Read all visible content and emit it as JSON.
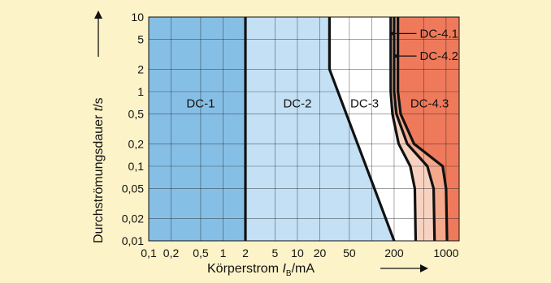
{
  "chart_data": {
    "type": "area",
    "title": "",
    "xlabel": {
      "prefix": "Körperstrom ",
      "symbol": "I",
      "subscript": "B",
      "unit": "/mA"
    },
    "ylabel": {
      "prefix": "Durchströmungsdauer ",
      "symbol": "t",
      "unit": "/s"
    },
    "x_scale": "log",
    "y_scale": "log",
    "xlim": [
      0.1,
      1500
    ],
    "ylim": [
      0.01,
      10
    ],
    "grid": true,
    "x_ticks": [
      {
        "label": "0,1",
        "value": 0.1
      },
      {
        "label": "0,2",
        "value": 0.2
      },
      {
        "label": "0,5",
        "value": 0.5
      },
      {
        "label": "1",
        "value": 1
      },
      {
        "label": "2",
        "value": 2
      },
      {
        "label": "5",
        "value": 5
      },
      {
        "label": "10",
        "value": 10
      },
      {
        "label": "20",
        "value": 20
      },
      {
        "label": "50",
        "value": 50
      },
      {
        "label": "200",
        "value": 200
      },
      {
        "label": "1000",
        "value": 1000
      }
    ],
    "y_ticks": [
      {
        "label": "0,01",
        "value": 0.01
      },
      {
        "label": "0,02",
        "value": 0.02
      },
      {
        "label": "0,05",
        "value": 0.05
      },
      {
        "label": "0,1",
        "value": 0.1
      },
      {
        "label": "0,2",
        "value": 0.2
      },
      {
        "label": "0,5",
        "value": 0.5
      },
      {
        "label": "1",
        "value": 1
      },
      {
        "label": "2",
        "value": 2
      },
      {
        "label": "5",
        "value": 5
      },
      {
        "label": "10",
        "value": 10
      }
    ],
    "zones": [
      {
        "label": "DC-1",
        "color": "#86bfe6",
        "label_at": {
          "x": 0.5,
          "y": 0.7
        }
      },
      {
        "label": "DC-2",
        "color": "#c4e0f5",
        "label_at": {
          "x": 10,
          "y": 0.7
        }
      },
      {
        "label": "DC-3",
        "color": "#ffffff",
        "label_at": {
          "x": 80,
          "y": 0.7
        }
      },
      {
        "label": "DC-4.1",
        "color": "#f8d2c0",
        "label_at": {
          "x": 400,
          "y": 6
        }
      },
      {
        "label": "DC-4.2",
        "color": "#f4a88c",
        "label_at": {
          "x": 400,
          "y": 3
        }
      },
      {
        "label": "DC-4.3",
        "color": "#ee7a5b",
        "label_at": {
          "x": 600,
          "y": 0.7
        }
      }
    ],
    "series": [
      {
        "name": "",
        "points": [
          [
            2,
            10
          ],
          [
            2,
            0.01
          ]
        ]
      },
      {
        "name": "",
        "points": [
          [
            27,
            10
          ],
          [
            27,
            2
          ],
          [
            200,
            0.01
          ]
        ]
      },
      {
        "name": "",
        "points": [
          [
            180,
            10
          ],
          [
            180,
            1
          ],
          [
            190,
            0.5
          ],
          [
            230,
            0.2
          ],
          [
            330,
            0.1
          ],
          [
            380,
            0.05
          ],
          [
            390,
            0.01
          ]
        ]
      },
      {
        "name": "",
        "points": [
          [
            200,
            10
          ],
          [
            200,
            1
          ],
          [
            215,
            0.5
          ],
          [
            300,
            0.2
          ],
          [
            560,
            0.1
          ],
          [
            680,
            0.05
          ],
          [
            700,
            0.01
          ]
        ]
      },
      {
        "name": "",
        "points": [
          [
            225,
            10
          ],
          [
            225,
            1
          ],
          [
            245,
            0.5
          ],
          [
            370,
            0.2
          ],
          [
            900,
            0.1
          ],
          [
            1000,
            0.05
          ],
          [
            1030,
            0.01
          ]
        ]
      }
    ]
  }
}
